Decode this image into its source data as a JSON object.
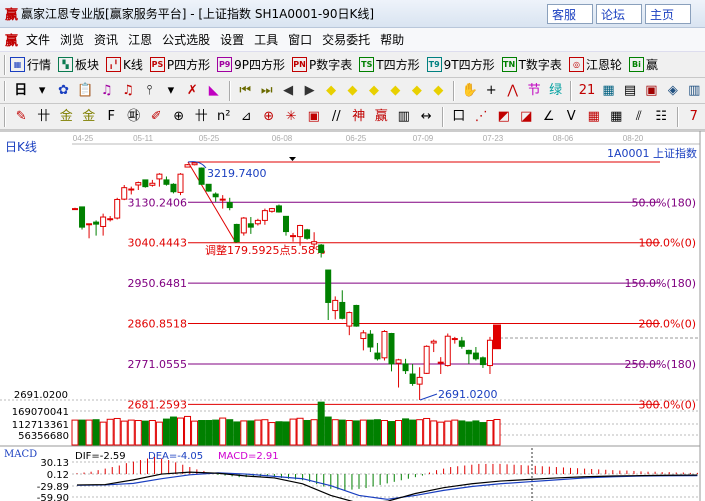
{
  "window": {
    "logo": "赢",
    "title": "赢家江恩专业版[赢家服务平台] - [上证指数  SH1A0001-90日K线]",
    "buttons": [
      "客服",
      "论坛",
      "主页"
    ]
  },
  "menu": {
    "logo": "赢",
    "items": [
      "文件",
      "浏览",
      "资讯",
      "江恩",
      "公式选股",
      "设置",
      "工具",
      "窗口",
      "交易委托",
      "帮助"
    ]
  },
  "toolbar1": [
    {
      "icon": "grid-icon",
      "glyph": "▦",
      "label": "行情",
      "color": "#1a3fc0"
    },
    {
      "icon": "blocks-icon",
      "glyph": "▚",
      "label": "板块",
      "color": "#0a7a50"
    },
    {
      "icon": "kline-icon",
      "glyph": "╻╹",
      "label": "K线",
      "color": "#c00000"
    },
    {
      "icon": "ps-icon",
      "glyph": "PS",
      "label": "P四方形",
      "color": "#c00000"
    },
    {
      "icon": "p9-icon",
      "glyph": "P9",
      "label": "9P四方形",
      "color": "#a000a0"
    },
    {
      "icon": "pn-icon",
      "glyph": "PN",
      "label": "P数字表",
      "color": "#c00000"
    },
    {
      "icon": "ts-icon",
      "glyph": "TS",
      "label": "T四方形",
      "color": "#008000"
    },
    {
      "icon": "t9-icon",
      "glyph": "T9",
      "label": "9T四方形",
      "color": "#008080"
    },
    {
      "icon": "tn-icon",
      "glyph": "TN",
      "label": "T数字表",
      "color": "#008000"
    },
    {
      "icon": "gann-wheel-icon",
      "glyph": "◎",
      "label": "江恩轮",
      "color": "#c00000"
    },
    {
      "icon": "big-icon",
      "glyph": "Bi",
      "label": "赢",
      "color": "#008000"
    }
  ],
  "toolbar2": {
    "period": "日",
    "icons": [
      {
        "name": "period-dropdown-icon",
        "glyph": "▾",
        "color": "#000"
      },
      {
        "name": "chart-style-icon",
        "glyph": "✿",
        "color": "#1a3fc0"
      },
      {
        "name": "notes-icon",
        "glyph": "📋",
        "color": "#1a3fc0"
      },
      {
        "name": "indicator3-icon",
        "glyph": "♫",
        "color": "#a000a0"
      },
      {
        "name": "indicator9-icon",
        "glyph": "♫",
        "color": "#c00000"
      },
      {
        "name": "candle-type-icon",
        "glyph": "⫯",
        "color": "#000"
      },
      {
        "name": "dropdown-icon",
        "glyph": "▾",
        "color": "#000"
      },
      {
        "name": "formula-icon",
        "glyph": "✗",
        "color": "#c00000"
      },
      {
        "name": "flag-icon",
        "glyph": "◣",
        "color": "#c000c0"
      },
      {
        "name": "first-icon",
        "glyph": "⏮",
        "color": "#6a6a00"
      },
      {
        "name": "last-icon",
        "glyph": "⏭",
        "color": "#6a6a00"
      },
      {
        "name": "prev-icon",
        "glyph": "◀",
        "color": "#333"
      },
      {
        "name": "next-icon",
        "glyph": "▶",
        "color": "#333"
      },
      {
        "name": "zoom-left-icon",
        "glyph": "◆",
        "color": "#e8d000"
      },
      {
        "name": "zoom-right-icon",
        "glyph": "◆",
        "color": "#e8d000"
      },
      {
        "name": "expand-icon",
        "glyph": "◆",
        "color": "#e8d000"
      },
      {
        "name": "shrink-icon",
        "glyph": "◆",
        "color": "#e8d000"
      },
      {
        "name": "zoom-in-icon",
        "glyph": "◆",
        "color": "#e8d000"
      },
      {
        "name": "zoom-out-icon",
        "glyph": "◆",
        "color": "#e8d000"
      },
      {
        "name": "hand-icon",
        "glyph": "✋",
        "color": "#000"
      },
      {
        "name": "crosshair-icon",
        "glyph": "+",
        "color": "#000"
      },
      {
        "name": "line-icon",
        "glyph": "⋀",
        "color": "#c00000"
      },
      {
        "name": "section-icon",
        "glyph": "节",
        "color": "#c000c0"
      },
      {
        "name": "green-icon",
        "glyph": "绿",
        "color": "#00a0a0"
      },
      {
        "name": "calendar-icon",
        "glyph": "21",
        "color": "#c00000"
      },
      {
        "name": "calculator-icon",
        "glyph": "▦",
        "color": "#006080"
      },
      {
        "name": "doc-icon",
        "glyph": "▤",
        "color": "#000"
      },
      {
        "name": "save-icon",
        "glyph": "▣",
        "color": "#a00000"
      },
      {
        "name": "network-icon",
        "glyph": "◈",
        "color": "#205080"
      },
      {
        "name": "computer-icon",
        "glyph": "▥",
        "color": "#205080"
      }
    ]
  },
  "toolbar3": {
    "icons": [
      {
        "name": "pen-icon",
        "glyph": "✎",
        "color": "#c00000"
      },
      {
        "name": "grid-lines-icon",
        "glyph": "卄",
        "color": "#000"
      },
      {
        "name": "gold-icon",
        "glyph": "金",
        "color": "#808000"
      },
      {
        "name": "gold2-icon",
        "glyph": "金",
        "color": "#808000"
      },
      {
        "name": "fib-icon",
        "glyph": "F",
        "color": "#000"
      },
      {
        "name": "spiral-icon",
        "glyph": "㉺",
        "color": "#000"
      },
      {
        "name": "pen2-icon",
        "glyph": "✐",
        "color": "#c00000"
      },
      {
        "name": "circle-icon",
        "glyph": "⊕",
        "color": "#000"
      },
      {
        "name": "lines-icon",
        "glyph": "卄",
        "color": "#000"
      },
      {
        "name": "n2-icon",
        "glyph": "n²",
        "color": "#000"
      },
      {
        "name": "angle-icon",
        "glyph": "⊿",
        "color": "#000"
      },
      {
        "name": "target-icon",
        "glyph": "⊕",
        "color": "#c00000"
      },
      {
        "name": "star-icon",
        "glyph": "✳",
        "color": "#c00000"
      },
      {
        "name": "square-icon",
        "glyph": "▣",
        "color": "#c00000"
      },
      {
        "name": "slash-icon",
        "glyph": "//",
        "color": "#000"
      },
      {
        "name": "god-icon",
        "glyph": "神",
        "color": "#c00000"
      },
      {
        "name": "win-icon",
        "glyph": "赢",
        "color": "#c00000"
      },
      {
        "name": "ruler-icon",
        "glyph": "▥",
        "color": "#000"
      },
      {
        "name": "measure-icon",
        "glyph": "↔",
        "color": "#000"
      },
      {
        "name": "box-icon",
        "glyph": "口",
        "color": "#000"
      },
      {
        "name": "fan-icon",
        "glyph": "⋰",
        "color": "#c00000"
      },
      {
        "name": "box-fan-icon",
        "glyph": "◩",
        "color": "#c00000"
      },
      {
        "name": "box-fan2-icon",
        "glyph": "◪",
        "color": "#c00000"
      },
      {
        "name": "angle2-icon",
        "glyph": "∠",
        "color": "#000"
      },
      {
        "name": "wave-icon",
        "glyph": "V",
        "color": "#000"
      },
      {
        "name": "grid-icon",
        "glyph": "▦",
        "color": "#c00000"
      },
      {
        "name": "grid2-icon",
        "glyph": "▦",
        "color": "#000"
      },
      {
        "name": "parallel-icon",
        "glyph": "⫽",
        "color": "#000"
      },
      {
        "name": "table-icon",
        "glyph": "☷",
        "color": "#000"
      },
      {
        "name": "more-icon",
        "glyph": "7",
        "color": "#c00000"
      }
    ]
  },
  "chart": {
    "period_label": "日K线",
    "symbol": "1A0001  上证指数",
    "dates": [
      "04-25",
      "05-11",
      "05-25",
      "06-08",
      "06-25",
      "07-09",
      "07-23",
      "08-06",
      "08-20"
    ],
    "high_label": "3219.7400",
    "low_label": "2691.0200",
    "axis_low": "2691.0200",
    "adjust_text": "调整179.5925点5.58%",
    "levels": [
      {
        "price": "3130.2406",
        "pct": "50.0%(180)",
        "color": "#800080"
      },
      {
        "price": "3040.4443",
        "pct": "100.0%(0)",
        "color": "#e00000"
      },
      {
        "price": "2950.6481",
        "pct": "150.0%(180)",
        "color": "#800080"
      },
      {
        "price": "2860.8518",
        "pct": "200.0%(0)",
        "color": "#e00000"
      },
      {
        "price": "2771.0555",
        "pct": "250.0%(180)",
        "color": "#800080"
      },
      {
        "price": "2681.2593",
        "pct": "300.0%(0)",
        "color": "#e00000"
      }
    ],
    "colors": {
      "up": "#e00000",
      "down": "#008000"
    },
    "candles": [
      [
        3116.2,
        3116.2,
        3118,
        3114
      ],
      [
        3120,
        3075,
        3120,
        3069.7
      ],
      [
        3082.5,
        3082.5,
        3082.5,
        3050.2
      ],
      [
        3086.2,
        3081.7,
        3090,
        3056.2
      ],
      [
        3076.5,
        3097.5,
        3105,
        3056.2
      ],
      [
        3093.7,
        3093.7,
        3099.7,
        3087.7
      ],
      [
        3095.2,
        3136.5,
        3140.2,
        3092.2
      ],
      [
        3137.2,
        3162.7,
        3168.7,
        3135
      ],
      [
        3159.7,
        3159.7,
        3165,
        3147.7
      ],
      [
        3168.7,
        3174,
        3176.2,
        3157.5
      ],
      [
        3180,
        3165,
        3180,
        3162.7
      ],
      [
        3168,
        3172.5,
        3180,
        3165
      ],
      [
        3182.2,
        3192.7,
        3195,
        3165
      ],
      [
        3180,
        3170.2,
        3187.5,
        3167.2
      ],
      [
        3170.2,
        3153.7,
        3172.5,
        3150
      ],
      [
        3152.2,
        3192.7,
        3195,
        3146.2
      ],
      [
        3208.5,
        3213.7,
        3215.2,
        3207.7
      ],
      [
        3213.7,
        3217.5,
        3219.74,
        3212.2
      ],
      [
        3206.2,
        3170.2,
        3207.7,
        3168.7
      ],
      [
        3170.2,
        3155.2,
        3170.2,
        3153.7
      ],
      [
        3148.5,
        3142.5,
        3152.2,
        3131.2
      ],
      [
        3137.2,
        3137.2,
        3146.2,
        3116.2
      ],
      [
        3129.7,
        3118.5,
        3140.2,
        3112.5
      ],
      [
        3081,
        3042.7,
        3082.5,
        3040.4
      ],
      [
        3062.2,
        3095.2,
        3097.5,
        3056.2
      ],
      [
        3082.5,
        3075,
        3097.5,
        3060
      ],
      [
        3082.5,
        3090,
        3093.7,
        3078.7
      ],
      [
        3090,
        3111.7,
        3116.2,
        3080.2
      ],
      [
        3110.2,
        3116.2,
        3117.7,
        3107.2
      ],
      [
        3122.2,
        3108.7,
        3125.2,
        3107.2
      ],
      [
        3099,
        3065.2,
        3099,
        3056.2
      ],
      [
        3056.2,
        3056.2,
        3062.2,
        3042.7
      ],
      [
        3054,
        3078.7,
        3080.2,
        3033.7
      ],
      [
        3069,
        3050.2,
        3071.2,
        3047.2
      ],
      [
        3037.5,
        3042.7,
        3063.7,
        3026.2
      ],
      [
        3035.2,
        3018.7,
        3037.5,
        3007.5
      ],
      [
        2979.7,
        2907.7,
        2979.7,
        2868.7
      ],
      [
        2889.7,
        2912.2,
        2921.2,
        2870.2
      ],
      [
        2907.7,
        2872.5,
        2934.7,
        2870.2
      ],
      [
        2855.2,
        2885.2,
        2887.5,
        2835
      ],
      [
        2901,
        2855.2,
        2902.5,
        2853.7
      ],
      [
        2827.5,
        2840.2,
        2846.2,
        2801.2
      ],
      [
        2837.2,
        2808.7,
        2846.2,
        2797.5
      ],
      [
        2795.2,
        2782.5,
        2817.7,
        2778.7
      ],
      [
        2784.7,
        2843.2,
        2846.2,
        2778.7
      ],
      [
        2838.7,
        2771.2,
        2840.2,
        2754.7
      ],
      [
        2772.7,
        2780.2,
        2782.5,
        2718.7
      ],
      [
        2771.2,
        2756.2,
        2782.5,
        2748.7
      ],
      [
        2748.7,
        2727.7,
        2771.2,
        2722.5
      ],
      [
        2726.2,
        2741.2,
        2763.7,
        2691.02
      ],
      [
        2750.2,
        2810.2,
        2812.5,
        2748.7
      ],
      [
        2817.7,
        2821.5,
        2825.2,
        2797.5
      ],
      [
        2775,
        2775,
        2786.2,
        2748.7
      ],
      [
        2767.5,
        2832.7,
        2838.7,
        2765.2
      ],
      [
        2827.5,
        2827.5,
        2831.2,
        2816.2
      ],
      [
        2822.2,
        2810.2,
        2831.2,
        2805
      ],
      [
        2801.2,
        2793.7,
        2802.7,
        2771.2
      ],
      [
        2795.2,
        2782.5,
        2808.7,
        2778.7
      ],
      [
        2784.7,
        2769.7,
        2787.7,
        2762.2
      ],
      [
        2767.5,
        2823.7,
        2831.2,
        2748.7
      ],
      [
        2805,
        2857.5,
        2857.5,
        2805
      ]
    ],
    "volume_labels": [
      "169070041",
      "112713361",
      "56356680"
    ],
    "volumes": [
      122,
      122,
      122,
      124,
      112,
      126,
      130,
      117,
      122,
      120,
      117,
      120,
      112,
      127,
      137,
      132,
      140,
      117,
      120,
      120,
      122,
      132,
      124,
      113,
      118,
      118,
      122,
      124,
      110,
      114,
      113,
      127,
      131,
      120,
      124,
      210,
      137,
      124,
      122,
      120,
      118,
      122,
      122,
      124,
      120,
      115,
      120,
      128,
      122,
      124,
      130,
      118,
      112,
      117,
      122,
      118,
      113,
      118,
      110,
      120,
      125
    ],
    "macd": {
      "label": "MACD",
      "dif": "DIF=-2.59",
      "dea": "DEA=-4.05",
      "macd": "MACD=2.91",
      "axis": [
        "30.13",
        "0.12",
        "-29.89",
        "-59.90"
      ],
      "hist": [
        2,
        4,
        6,
        10,
        14,
        18,
        22,
        28,
        32,
        36,
        40,
        44,
        40,
        36,
        30,
        24,
        18,
        12,
        8,
        4,
        -2,
        -4,
        -6,
        -8,
        -8,
        -6,
        -6,
        -6,
        -8,
        -10,
        -12,
        -14,
        -16,
        -20,
        -26,
        -32,
        -38,
        -40,
        -42,
        -40,
        -38,
        -36,
        -32,
        -28,
        -24,
        -20,
        -16,
        -12,
        -8,
        -4,
        4,
        10,
        14,
        18,
        20,
        22,
        24,
        26,
        26,
        26,
        26,
        25,
        24,
        23,
        22,
        21,
        20,
        19,
        18,
        17,
        16,
        15,
        14,
        13,
        12,
        11,
        10,
        9,
        9,
        8,
        7,
        6,
        6,
        5,
        5,
        4,
        4,
        3,
        3
      ],
      "dif_line": [
        -28,
        -27,
        -15,
        0,
        5,
        2,
        -5,
        -10,
        -25,
        -55,
        -75,
        -70,
        -50,
        -35,
        -25,
        -18,
        -14,
        -10,
        -7,
        -5,
        -4,
        -3,
        -2.59
      ],
      "dea_line": [
        -29,
        -28,
        -24,
        -12,
        -2,
        3,
        0,
        -6,
        -12,
        -30,
        -55,
        -65,
        -55,
        -42,
        -32,
        -25,
        -20,
        -15,
        -10,
        -7,
        -5,
        -4.5,
        -4.05
      ]
    }
  }
}
